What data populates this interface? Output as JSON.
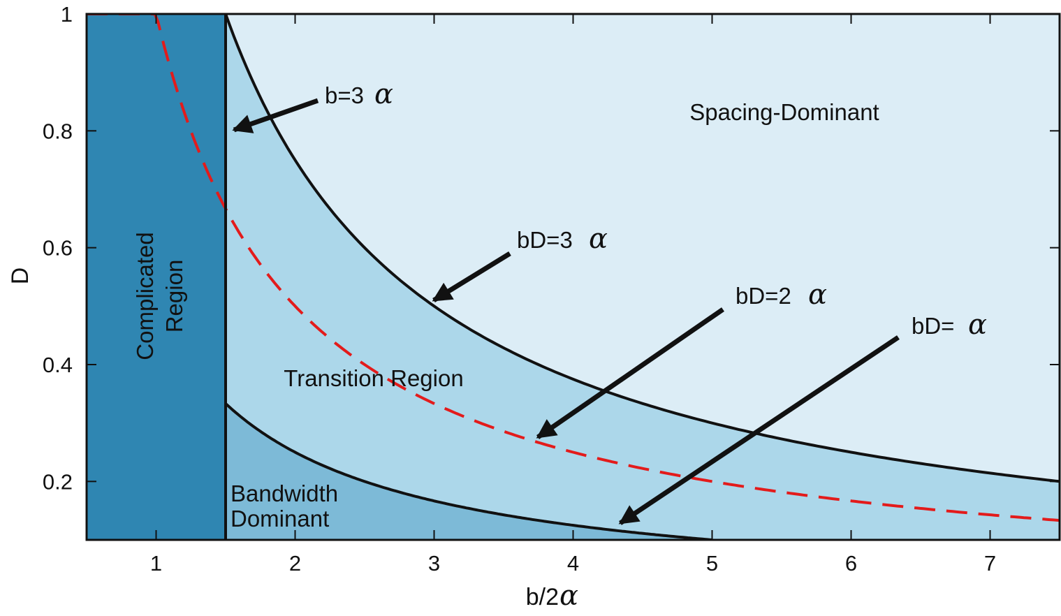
{
  "chart_data": {
    "type": "area",
    "title": "",
    "xlabel": "b/2",
    "xlabel_symbol": "α",
    "ylabel": "D",
    "xlim": [
      0.5,
      7.5
    ],
    "ylim": [
      0.1,
      1.0
    ],
    "xticks": [
      1,
      2,
      3,
      4,
      5,
      6,
      7
    ],
    "yticks": [
      0.2,
      0.4,
      0.6,
      0.8,
      1.0
    ],
    "xtick_labels": [
      "1",
      "2",
      "3",
      "4",
      "5",
      "6",
      "7"
    ],
    "ytick_labels": [
      "0.2",
      "0.4",
      "0.6",
      "0.8",
      "1"
    ],
    "grid": false,
    "colors": {
      "complicated": "#2f86b2",
      "transition": "#acd7ea",
      "spacing": "#dcedf6",
      "bandwidth": "#7dbad7",
      "curve": "#111111",
      "dashed": "#e31b1b"
    },
    "boundary_x": 1.5,
    "series": [
      {
        "label_text": "bD=3",
        "symbol": "α",
        "style": "solid",
        "x": [
          1.5,
          2,
          3,
          4,
          5,
          6,
          7,
          7.5
        ],
        "y": [
          1.0,
          0.75,
          0.5,
          0.375,
          0.3,
          0.25,
          0.2143,
          0.2
        ]
      },
      {
        "label_text": "bD=2",
        "symbol": "α",
        "style": "dashed",
        "x": [
          0.5,
          1.0,
          1.5,
          2,
          3,
          4,
          5,
          6,
          7,
          7.5
        ],
        "y": [
          1.0,
          1.0,
          0.667,
          0.5,
          0.333,
          0.25,
          0.2,
          0.167,
          0.143,
          0.133
        ]
      },
      {
        "label_text": "bD=",
        "symbol": "α",
        "style": "solid",
        "x": [
          1.5,
          2,
          3,
          4,
          5
        ],
        "y": [
          0.333,
          0.25,
          0.167,
          0.125,
          0.1
        ]
      }
    ],
    "regions": [
      {
        "label": "Complicated Region",
        "lines": [
          "Complicated",
          "Region"
        ]
      },
      {
        "label": "Transition Region",
        "lines": [
          "Transition Region"
        ]
      },
      {
        "label": "Spacing-Dominant",
        "lines": [
          "Spacing-Dominant"
        ]
      },
      {
        "label": "Bandwidth Dominant",
        "lines": [
          "Bandwidth",
          "Dominant"
        ]
      }
    ],
    "annotations": [
      {
        "text": "b=3",
        "symbol": "α",
        "target": "vertical boundary"
      },
      {
        "text": "bD=3",
        "symbol": "α",
        "target": "bD=3α curve"
      },
      {
        "text": "bD=2",
        "symbol": "α",
        "target": "bD=2α curve"
      },
      {
        "text": "bD=",
        "symbol": "α",
        "target": "bD=α curve"
      }
    ]
  }
}
